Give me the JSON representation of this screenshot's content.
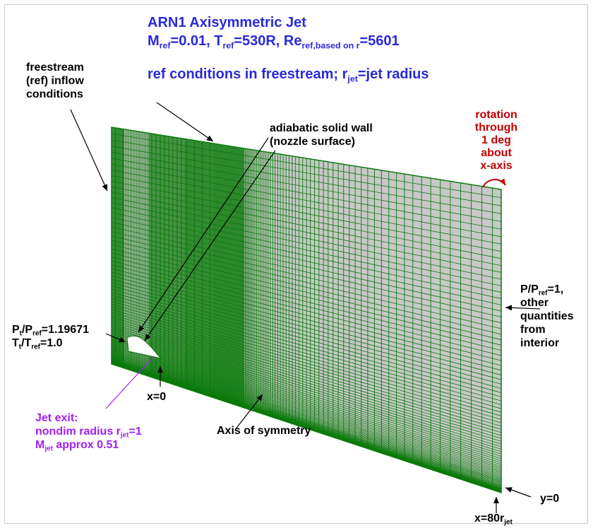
{
  "title": {
    "line1": "ARN1 Axisymmetric Jet",
    "line2": {
      "m": "M",
      "m_sub": "ref",
      "m_val": "=0.01, ",
      "t": "T",
      "t_sub": "ref",
      "t_val": "=530R, ",
      "re": "Re",
      "re_sub": "ref,based on r",
      "re_val": "=5601"
    },
    "line3": {
      "pre": "ref conditions in freestream; r",
      "sub": "jet",
      "post": "=jet radius"
    }
  },
  "labels": {
    "freestream": [
      "freestream",
      "(ref) inflow",
      "conditions"
    ],
    "wall": [
      "adiabatic solid wall",
      "(nozzle surface)"
    ],
    "rotation": [
      "rotation",
      "through",
      "1 deg",
      "about",
      "x-axis"
    ],
    "outflow": {
      "p": "P/P",
      "p_sub": "ref",
      "p_val": "=1,",
      "rest": [
        "other",
        "quantities",
        "from",
        "interior"
      ]
    },
    "inflow_jet": {
      "pt": "P",
      "pt_sub": "t",
      "pt_mid": "/P",
      "pt_sub2": "ref",
      "pt_val": "=1.19671",
      "tt": "T",
      "tt_sub": "t",
      "tt_mid": "/T",
      "tt_sub2": "ref",
      "tt_val": "=1.0"
    },
    "x0": "x=0",
    "jet_exit": {
      "line1": "Jet exit:",
      "line2_pre": "nondim radius r",
      "line2_sub": "jet",
      "line2_post": "=1",
      "line3_pre": "M",
      "line3_sub": "jet",
      "line3_post": " approx 0.51"
    },
    "axis": "Axis of symmetry",
    "x80": {
      "pre": "x=80r",
      "sub": "jet"
    },
    "y0": "y=0"
  },
  "colors": {
    "title": "#2a2ad8",
    "grid_line": "#0a7a0a",
    "grid_fill": "#22b422",
    "grid_coarse_fill": "#c8c8c8",
    "annotation": "#000000",
    "rotation": "#c00000",
    "jet_exit": "#a020f0"
  }
}
